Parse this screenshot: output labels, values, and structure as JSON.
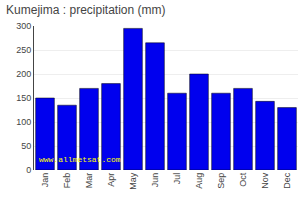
{
  "chart_data": {
    "type": "bar",
    "title": "Kumejima : precipitation (mm)",
    "categories": [
      "Jan",
      "Feb",
      "Mar",
      "Apr",
      "May",
      "Jun",
      "Jul",
      "Aug",
      "Sep",
      "Oct",
      "Nov",
      "Dec"
    ],
    "values": [
      150,
      135,
      170,
      180,
      295,
      265,
      160,
      200,
      160,
      170,
      143,
      130
    ],
    "color": "#0000ee",
    "ylim": [
      0,
      300
    ],
    "yticks": [
      0,
      50,
      100,
      150,
      200,
      250,
      300
    ],
    "grid": true,
    "annotations": [
      {
        "text": "www.allmetsat.com",
        "color": "#ffff00"
      }
    ]
  }
}
